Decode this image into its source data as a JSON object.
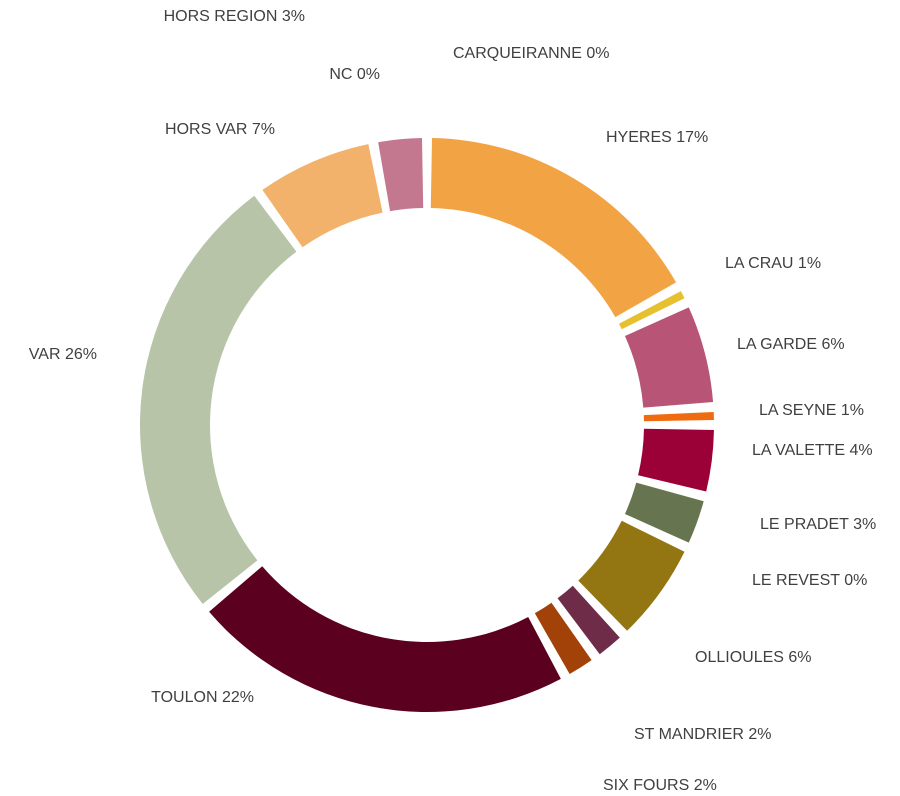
{
  "chart_data": {
    "type": "donut",
    "categories": [
      "CARQUEIRANNE",
      "HYERES",
      "LA CRAU",
      "LA GARDE",
      "LA SEYNE",
      "LA VALETTE",
      "LE PRADET",
      "LE REVEST",
      "OLLIOULES",
      "ST MANDRIER",
      "SIX FOURS",
      "TOULON",
      "VAR",
      "HORS VAR",
      "NC",
      "HORS REGION"
    ],
    "values": [
      0,
      17,
      1,
      6,
      1,
      4,
      3,
      0,
      6,
      2,
      2,
      22,
      26,
      7,
      0,
      3
    ],
    "value_labels": [
      "0%",
      "17%",
      "1%",
      "6%",
      "1%",
      "4%",
      "3%",
      "0%",
      "6%",
      "2%",
      "2%",
      "22%",
      "26%",
      "7%",
      "0%",
      "3%"
    ],
    "colors": [
      "#d9a066",
      "#f2a444",
      "#e6c02e",
      "#b85475",
      "#f06a10",
      "#9b0036",
      "#667550",
      "#8a8a5a",
      "#937611",
      "#6e2c48",
      "#a34208",
      "#5c0020",
      "#b8c4a8",
      "#f2b26c",
      "#cccccc",
      "#c47890"
    ]
  }
}
